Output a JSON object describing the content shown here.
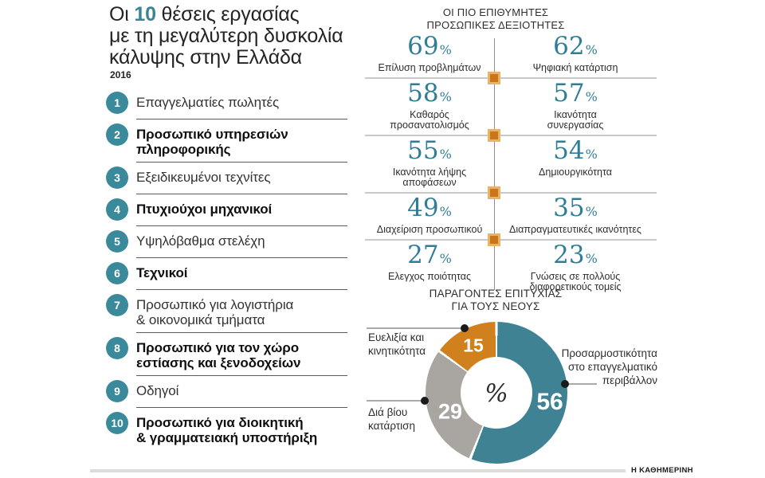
{
  "header": {
    "title_prefix": "Οι",
    "title_highlight": "10",
    "title_line1_rest": "θέσεις εργασίας",
    "title_line2": "με τη μεγαλύτερη δυσκολία",
    "title_line3": "κάλυψης στην Ελλάδα",
    "year": "2016"
  },
  "jobs": {
    "items": [
      {
        "num": "1",
        "label": "Επαγγελματίες πωλητές"
      },
      {
        "num": "2",
        "label": "Προσωπικό υπηρεσιών\nπληροφορικής"
      },
      {
        "num": "3",
        "label": "Εξειδικευμένοι τεχνίτες"
      },
      {
        "num": "4",
        "label": "Πτυχιούχοι μηχανικοί"
      },
      {
        "num": "5",
        "label": "Υψηλόβαθμα στελέχη"
      },
      {
        "num": "6",
        "label": "Τεχνικοί"
      },
      {
        "num": "7",
        "label": "Προσωπικό για λογιστήρια\n& οικονομικά τμήματα"
      },
      {
        "num": "8",
        "label": "Προσωπικό για τον χώρο\nεστίασης και ξενοδοχείων"
      },
      {
        "num": "9",
        "label": "Οδηγοί"
      },
      {
        "num": "10",
        "label": "Προσωπικό για διοικητική\n& γραμματειακή υποστήριξη"
      }
    ]
  },
  "skills": {
    "title": "ΟΙ ΠΙΟ ΕΠΙΘΥΜΗΤΕΣ\nΠΡΟΣΩΠΙΚΕΣ ΔΕΞΙΟΤΗΤΕΣ",
    "percent_sign": "%",
    "rows": [
      {
        "left": {
          "value": "69",
          "label": "Επίλυση προβλημάτων"
        },
        "right": {
          "value": "62",
          "label": "Ψηφιακή κατάρτιση"
        }
      },
      {
        "left": {
          "value": "58",
          "label": "Καθαρός\nπροσανατολισμός"
        },
        "right": {
          "value": "57",
          "label": "Ικανότητα\nσυνεργασίας"
        }
      },
      {
        "left": {
          "value": "55",
          "label": "Ικανότητα λήψης αποφάσεων"
        },
        "right": {
          "value": "54",
          "label": "Δημιουργικότητα"
        }
      },
      {
        "left": {
          "value": "49",
          "label": "Διαχείριση προσωπικού"
        },
        "right": {
          "value": "35",
          "label": "Διαπραγματευτικές ικανότητες"
        }
      },
      {
        "left": {
          "value": "27",
          "label": "Ελεγχος ποιότητας"
        },
        "right": {
          "value": "23",
          "label": "Γνώσεις σε πολλούς\nδιαφορετικούς τομείς"
        }
      }
    ]
  },
  "success": {
    "title": "ΠΑΡΑΓΟΝΤΕΣ ΕΠΙΤΥΧΙΑΣ\nΓΙΑ ΤΟΥΣ ΝΕΟΥΣ",
    "center_label": "%",
    "slices": [
      {
        "label": "Προσαρμοστικότητα\nστο επαγγελματικό\nπεριβάλλον",
        "value": "56",
        "color": "#3e8294"
      },
      {
        "label": "Διά βίου\nκατάρτιση",
        "value": "29",
        "color": "#a9a5a1"
      },
      {
        "label": "Ευελιξία και\nκινητικότητα",
        "value": "15",
        "color": "#d0801d"
      }
    ]
  },
  "footer": {
    "credit": "Η ΚΑΘΗΜΕΡΙΝΗ"
  },
  "colors": {
    "teal": "#3a8a9c",
    "teal_number": "#2f7e96",
    "orange": "#c9761b",
    "orange_border": "#e9b264",
    "gray_slice": "#a9a5a1",
    "divider_light": "#c9c9c9",
    "separator_dark": "#5a5a5a"
  },
  "chart_data": [
    {
      "type": "table",
      "title": "ΟΙ ΠΙΟ ΕΠΙΘΥΜΗΤΕΣ ΠΡΟΣΩΠΙΚΕΣ ΔΕΞΙΟΤΗΤΕΣ",
      "unit": "%",
      "categories": [
        "Επίλυση προβλημάτων",
        "Ψηφιακή κατάρτιση",
        "Καθαρός προσανατολισμός",
        "Ικανότητα συνεργασίας",
        "Ικανότητα λήψης αποφάσεων",
        "Δημιουργικότητα",
        "Διαχείριση προσωπικού",
        "Διαπραγματευτικές ικανότητες",
        "Ελεγχος ποιότητας",
        "Γνώσεις σε πολλούς διαφορετικούς τομείς"
      ],
      "values": [
        69,
        62,
        58,
        57,
        55,
        54,
        49,
        35,
        27,
        23
      ],
      "layout": "two-column grid, values in teal serif numerals with small % sign, light gray dividers with orange square markers"
    },
    {
      "type": "pie",
      "subtype": "donut",
      "title": "ΠΑΡΑΓΟΝΤΕΣ ΕΠΙΤΥΧΙΑΣ ΓΙΑ ΤΟΥΣ ΝΕΟΥΣ",
      "center_label": "%",
      "labels": [
        "Προσαρμοστικότητα στο επαγγελματικό περιβάλλον",
        "Διά βίου κατάρτιση",
        "Ευελιξία και κινητικότητα"
      ],
      "values": [
        56,
        29,
        15
      ],
      "colors": [
        "#3e8294",
        "#a9a5a1",
        "#d0801d"
      ],
      "start_angle_deg": 0,
      "direction": "clockwise",
      "legend_position": "callouts with black dots"
    },
    {
      "type": "table",
      "title": "Οι 10 θέσεις εργασίας με τη μεγαλύτερη δυσκολία κάλυψης στην Ελλάδα (2016)",
      "categories": [
        "1",
        "2",
        "3",
        "4",
        "5",
        "6",
        "7",
        "8",
        "9",
        "10"
      ],
      "values": [
        "Επαγγελματίες πωλητές",
        "Προσωπικό υπηρεσιών πληροφορικής",
        "Εξειδικευμένοι τεχνίτες",
        "Πτυχιούχοι μηχανικοί",
        "Υψηλόβαθμα στελέχη",
        "Τεχνικοί",
        "Προσωπικό για λογιστήρια & οικονομικά τμήματα",
        "Προσωπικό για τον χώρο εστίασης και ξενοδοχείων",
        "Οδηγοί",
        "Προσωπικό για διοικητική & γραμματειακή υποστήριξη"
      ]
    }
  ]
}
